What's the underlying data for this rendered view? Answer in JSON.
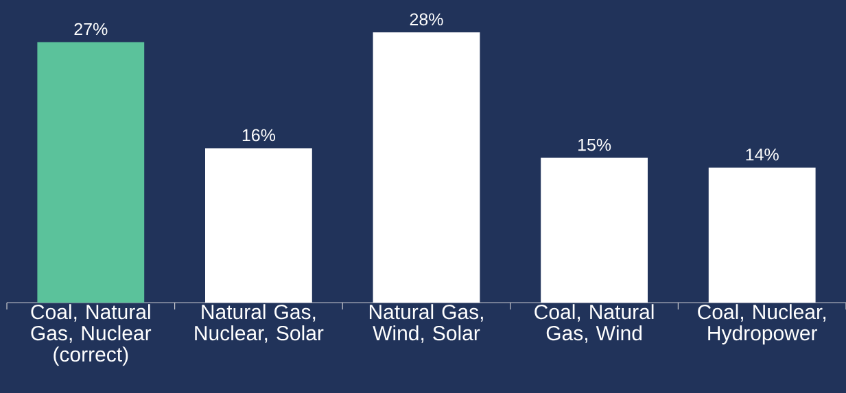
{
  "chart_data": {
    "type": "bar",
    "categories": [
      "Coal, Natural Gas, Nuclear (correct)",
      "Natural Gas, Nuclear, Solar",
      "Natural Gas, Wind, Solar",
      "Coal, Natural Gas, Wind",
      "Coal, Nuclear, Hydropower"
    ],
    "values": [
      27,
      16,
      28,
      15,
      14
    ],
    "colors": [
      "#5bc29b",
      "#ffffff",
      "#ffffff",
      "#ffffff",
      "#ffffff"
    ],
    "value_labels": [
      "27%",
      "16%",
      "28%",
      "15%",
      "14%"
    ]
  }
}
